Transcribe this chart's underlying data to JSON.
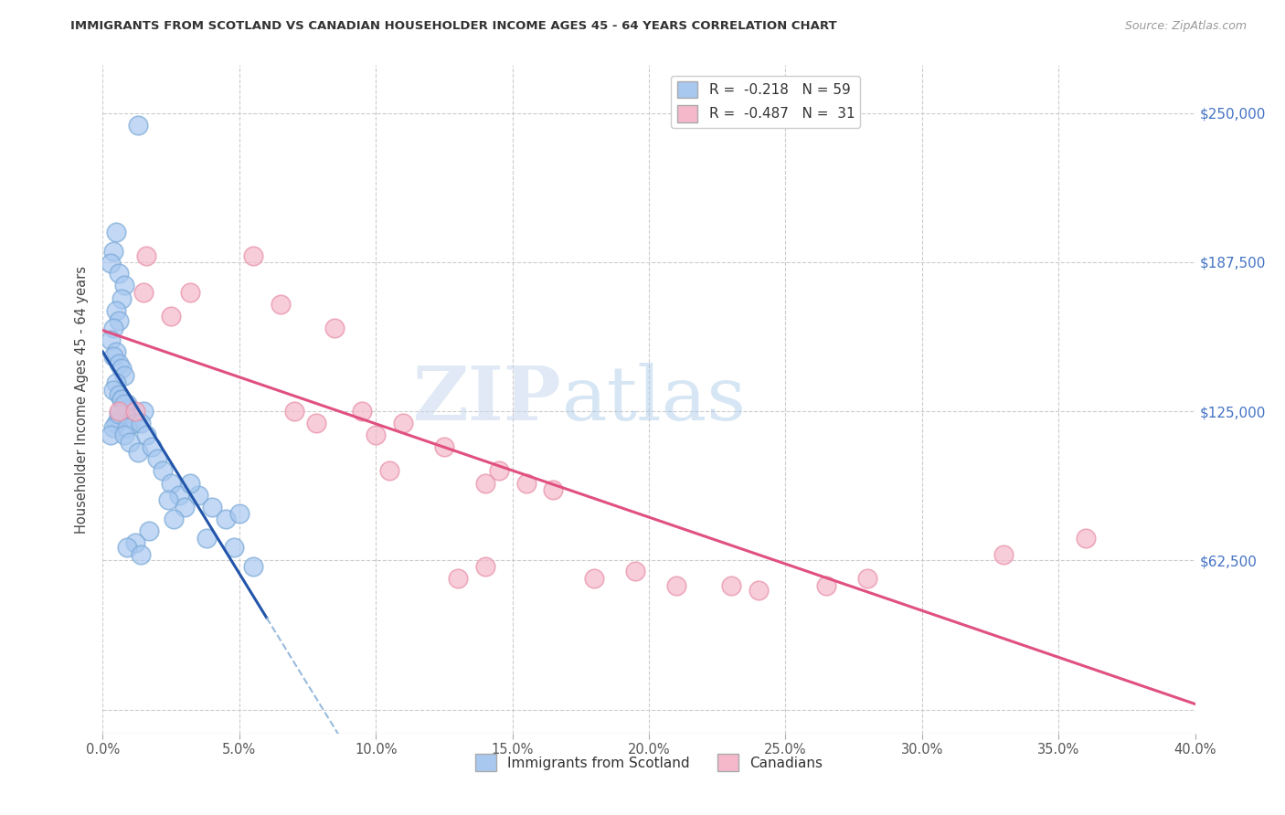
{
  "title": "IMMIGRANTS FROM SCOTLAND VS CANADIAN HOUSEHOLDER INCOME AGES 45 - 64 YEARS CORRELATION CHART",
  "source": "Source: ZipAtlas.com",
  "ylabel": "Householder Income Ages 45 - 64 years",
  "xlabel_vals": [
    0.0,
    5.0,
    10.0,
    15.0,
    20.0,
    25.0,
    30.0,
    35.0,
    40.0
  ],
  "ylabel_ticks": [
    0,
    62500,
    125000,
    187500,
    250000
  ],
  "ylabel_labels": [
    "",
    "$62,500",
    "$125,000",
    "$187,500",
    "$250,000"
  ],
  "xmin": 0.0,
  "xmax": 40.0,
  "ymin": -10000,
  "ymax": 270000,
  "watermark_zip": "ZIP",
  "watermark_atlas": "atlas",
  "legend_blue_r": "R =  -0.218",
  "legend_blue_n": "N = 59",
  "legend_pink_r": "R =  -0.487",
  "legend_pink_n": "N =  31",
  "blue_scatter_color": "#A8C8F0",
  "blue_scatter_edge": "#7BAAD8",
  "pink_scatter_color": "#F5B8CB",
  "pink_scatter_edge": "#E890A8",
  "line_blue_color": "#2255AA",
  "line_blue_dash_color": "#99BBDD",
  "line_pink_color": "#E05080",
  "background": "#FFFFFF",
  "grid_color": "#CCCCCC",
  "right_axis_color": "#4472C4",
  "scatter_blue_x": [
    1.3,
    0.5,
    0.4,
    0.3,
    0.6,
    0.8,
    0.7,
    0.5,
    0.6,
    0.4,
    0.3,
    0.5,
    0.4,
    0.6,
    0.7,
    0.8,
    0.5,
    0.4,
    0.6,
    0.7,
    0.9,
    1.0,
    0.8,
    0.6,
    0.5,
    0.4,
    0.3,
    0.7,
    0.8,
    0.6,
    1.1,
    1.2,
    0.9,
    0.8,
    1.0,
    1.3,
    1.5,
    1.4,
    1.6,
    1.8,
    2.0,
    2.2,
    2.5,
    2.8,
    3.0,
    3.5,
    4.0,
    4.5,
    5.0,
    3.2,
    2.4,
    1.7,
    1.2,
    0.9,
    1.4,
    2.6,
    3.8,
    4.8,
    5.5
  ],
  "scatter_blue_y": [
    245000,
    200000,
    192000,
    187000,
    183000,
    178000,
    172000,
    167000,
    163000,
    160000,
    155000,
    150000,
    148000,
    145000,
    143000,
    140000,
    137000,
    134000,
    132000,
    130000,
    128000,
    126000,
    124000,
    122000,
    120000,
    118000,
    115000,
    130000,
    128000,
    124000,
    122000,
    120000,
    118000,
    115000,
    112000,
    108000,
    125000,
    120000,
    115000,
    110000,
    105000,
    100000,
    95000,
    90000,
    85000,
    90000,
    85000,
    80000,
    82000,
    95000,
    88000,
    75000,
    70000,
    68000,
    65000,
    80000,
    72000,
    68000,
    60000
  ],
  "scatter_pink_x": [
    0.6,
    1.2,
    1.5,
    1.6,
    2.5,
    5.5,
    6.5,
    3.2,
    7.0,
    8.5,
    7.8,
    9.5,
    10.0,
    11.0,
    10.5,
    12.5,
    14.0,
    14.5,
    15.5,
    16.5,
    18.0,
    19.5,
    21.0,
    23.0,
    24.0,
    26.5,
    28.0,
    33.0,
    36.0,
    14.0,
    13.0
  ],
  "scatter_pink_y": [
    125000,
    125000,
    175000,
    190000,
    165000,
    190000,
    170000,
    175000,
    125000,
    160000,
    120000,
    125000,
    115000,
    120000,
    100000,
    110000,
    95000,
    100000,
    95000,
    92000,
    55000,
    58000,
    52000,
    52000,
    50000,
    52000,
    55000,
    65000,
    72000,
    60000,
    55000
  ]
}
